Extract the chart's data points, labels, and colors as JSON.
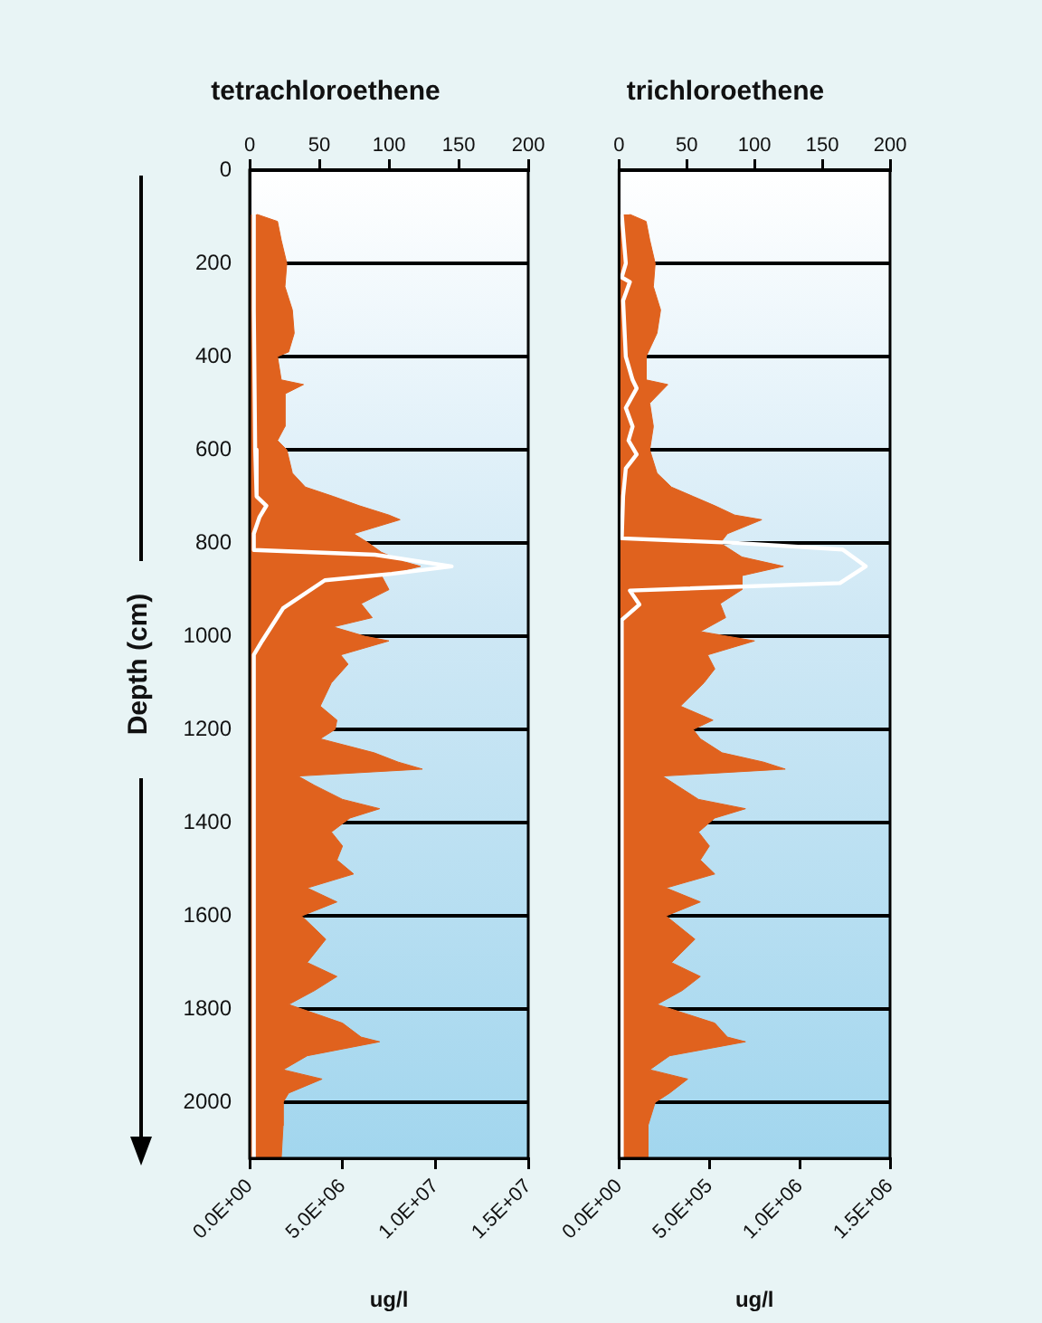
{
  "chart_data": [
    {
      "type": "area",
      "title": "tetrachloroethene",
      "xlabel": "ug/l",
      "ylabel": "Depth (cm)",
      "orientation": "horizontal",
      "grid": "y",
      "marker": "none",
      "xlim": [
        0,
        15000000
      ],
      "xticks": [
        {
          "value": 0,
          "label": "0.0E+00"
        },
        {
          "value": 5000000,
          "label": "5.0E+06"
        },
        {
          "value": 10000000,
          "label": "1.0E+07"
        },
        {
          "value": 15000000,
          "label": "1.5E+07"
        }
      ],
      "x2lim": [
        0,
        200
      ],
      "x2ticks": [
        0,
        50,
        100,
        150,
        200
      ],
      "ylim": [
        2120,
        0
      ],
      "yticks": [
        0,
        200,
        400,
        600,
        800,
        1000,
        1200,
        1400,
        1600,
        1800,
        2000
      ],
      "series": [
        {
          "color": "#e0621e",
          "x": [
            95,
            110,
            150,
            200,
            250,
            300,
            350,
            390,
            400,
            450,
            460,
            480,
            550,
            580,
            600,
            650,
            680,
            700,
            720,
            740,
            750,
            780,
            800,
            820,
            840,
            850,
            870,
            900,
            930,
            960,
            980,
            1000,
            1010,
            1040,
            1060,
            1100,
            1150,
            1180,
            1200,
            1220,
            1250,
            1270,
            1285,
            1300,
            1320,
            1350,
            1370,
            1390,
            1420,
            1450,
            1480,
            1510,
            1540,
            1570,
            1600,
            1650,
            1700,
            1730,
            1760,
            1790,
            1830,
            1860,
            1870,
            1900,
            1930,
            1950,
            1980,
            2000,
            2050,
            2120
          ],
          "values": [
            400000,
            1500000,
            1700000,
            2000000,
            1900000,
            2300000,
            2400000,
            2100000,
            1500000,
            1700000,
            2900000,
            1900000,
            1900000,
            1500000,
            2000000,
            2300000,
            3000000,
            4500000,
            5900000,
            7500000,
            8100000,
            5600000,
            6400000,
            7100000,
            8300000,
            9200000,
            7100000,
            7500000,
            6000000,
            6600000,
            4500000,
            6200000,
            7500000,
            4900000,
            5300000,
            4400000,
            3800000,
            4700000,
            4600000,
            3800000,
            6700000,
            8000000,
            9300000,
            2600000,
            3500000,
            5000000,
            7000000,
            5400000,
            4400000,
            5000000,
            4700000,
            5600000,
            3100000,
            4700000,
            2800000,
            4100000,
            3100000,
            4700000,
            3500000,
            2100000,
            5000000,
            6000000,
            7000000,
            3100000,
            1800000,
            3900000,
            2100000,
            1800000,
            1800000,
            1700000
          ]
        },
        {
          "type": "line",
          "axis": "x2",
          "color": "#ffffff",
          "x": [
            95,
            300,
            600,
            700,
            720,
            745,
            780,
            815,
            825,
            850,
            866,
            880,
            940,
            1010,
            1040,
            2120
          ],
          "values": [
            3,
            3,
            4,
            5,
            12,
            7,
            3,
            3,
            90,
            145,
            102,
            54,
            24,
            9,
            3,
            3
          ]
        }
      ]
    },
    {
      "type": "area",
      "title": "trichloroethene",
      "xlabel": "ug/l",
      "orientation": "horizontal",
      "grid": "y",
      "marker": "none",
      "tick_labels": "x",
      "xlim": [
        0,
        1500000
      ],
      "xticks": [
        {
          "value": 0,
          "label": "0.0E+00"
        },
        {
          "value": 500000,
          "label": "5.0E+05"
        },
        {
          "value": 1000000,
          "label": "1.0E+06"
        },
        {
          "value": 1500000,
          "label": "1.5E+06"
        }
      ],
      "x2lim": [
        0,
        200
      ],
      "x2ticks": [
        0,
        50,
        100,
        150,
        200
      ],
      "ylim": [
        2120,
        0
      ],
      "yticks": [
        0,
        200,
        400,
        600,
        800,
        1000,
        1200,
        1400,
        1600,
        1800,
        2000
      ],
      "series": [
        {
          "color": "#e0621e",
          "x": [
            95,
            110,
            150,
            200,
            250,
            300,
            350,
            400,
            450,
            460,
            500,
            550,
            600,
            650,
            680,
            700,
            720,
            740,
            750,
            780,
            800,
            830,
            850,
            870,
            900,
            930,
            960,
            990,
            1010,
            1040,
            1070,
            1100,
            1150,
            1180,
            1200,
            1220,
            1250,
            1270,
            1285,
            1300,
            1320,
            1350,
            1370,
            1390,
            1420,
            1450,
            1480,
            1510,
            1540,
            1570,
            1600,
            1650,
            1700,
            1730,
            1760,
            1790,
            1830,
            1860,
            1870,
            1900,
            1930,
            1950,
            1980,
            2000,
            2050,
            2120
          ],
          "values": [
            60000,
            150000,
            170000,
            200000,
            190000,
            230000,
            210000,
            150000,
            150000,
            270000,
            170000,
            190000,
            170000,
            210000,
            290000,
            410000,
            530000,
            640000,
            790000,
            600000,
            560000,
            680000,
            910000,
            680000,
            680000,
            560000,
            590000,
            450000,
            750000,
            490000,
            530000,
            470000,
            340000,
            520000,
            410000,
            450000,
            570000,
            800000,
            920000,
            240000,
            320000,
            440000,
            700000,
            530000,
            440000,
            500000,
            450000,
            530000,
            260000,
            450000,
            260000,
            420000,
            290000,
            450000,
            350000,
            210000,
            530000,
            600000,
            700000,
            280000,
            170000,
            380000,
            280000,
            200000,
            160000,
            160000
          ]
        },
        {
          "type": "line",
          "axis": "x2",
          "color": "#ffffff",
          "x": [
            95,
            200,
            230,
            240,
            280,
            400,
            450,
            468,
            510,
            550,
            580,
            610,
            640,
            700,
            790,
            800,
            814,
            850,
            886,
            902,
            932,
            965,
            2120
          ],
          "values": [
            2,
            5,
            2,
            8,
            3,
            5,
            10,
            13,
            5,
            10,
            7,
            13,
            5,
            3,
            2,
            88,
            165,
            182,
            163,
            8,
            15,
            2,
            2
          ]
        }
      ]
    }
  ]
}
